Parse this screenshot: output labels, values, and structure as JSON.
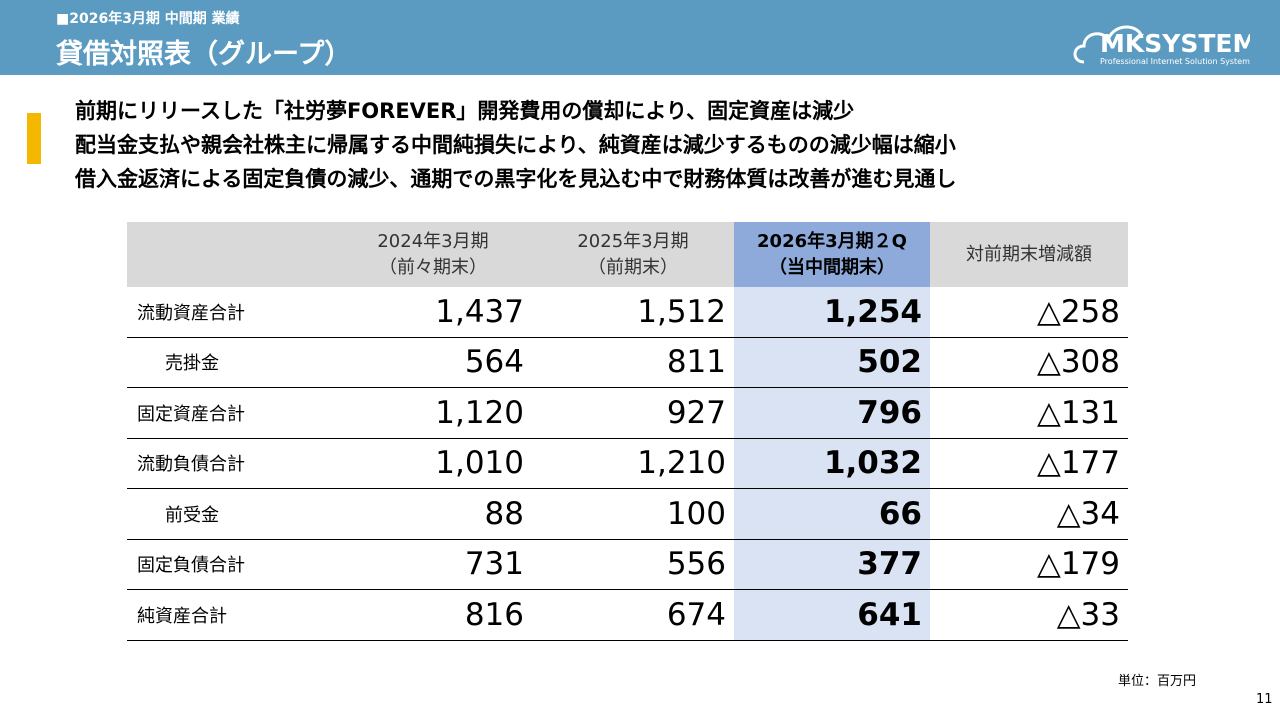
{
  "header": {
    "section": "■2026年3月期 中間期 業績",
    "title": "貸借対照表（グループ）"
  },
  "logo": {
    "name": "MKSYSTEM",
    "tagline": "Professional Internet Solution System"
  },
  "summary": [
    "前期にリリースした「社労夢FOREVER」開発費用の償却により、固定資産は減少",
    "配当金支払や親会社株主に帰属する中間純損失により、純資産は減少するものの減少幅は縮小",
    "借入金返済による固定負債の減少、通期での黒字化を見込む中で財務体質は改善が進む見通し"
  ],
  "table": {
    "columns": [
      [
        "2024年3月期",
        "（前々期末）"
      ],
      [
        "2025年3月期",
        "（前期末）"
      ],
      [
        "2026年3月期２Q",
        "（当中間期末）"
      ],
      [
        "対前期末増減額"
      ]
    ],
    "rows": [
      [
        "流動資産合計",
        "1,437",
        "1,512",
        "1,254",
        "△258"
      ],
      [
        "売掛金",
        "564",
        "811",
        "502",
        "△308"
      ],
      [
        "固定資産合計",
        "1,120",
        "927",
        "796",
        "△131"
      ],
      [
        "流動負債合計",
        "1,010",
        "1,210",
        "1,032",
        "△177"
      ],
      [
        "前受金",
        "88",
        "100",
        "66",
        "△34"
      ],
      [
        "固定負債合計",
        "731",
        "556",
        "377",
        "△179"
      ],
      [
        "純資産合計",
        "816",
        "674",
        "641",
        "△33"
      ]
    ]
  },
  "footer": {
    "unit": "単位：百万円",
    "page": "11"
  }
}
